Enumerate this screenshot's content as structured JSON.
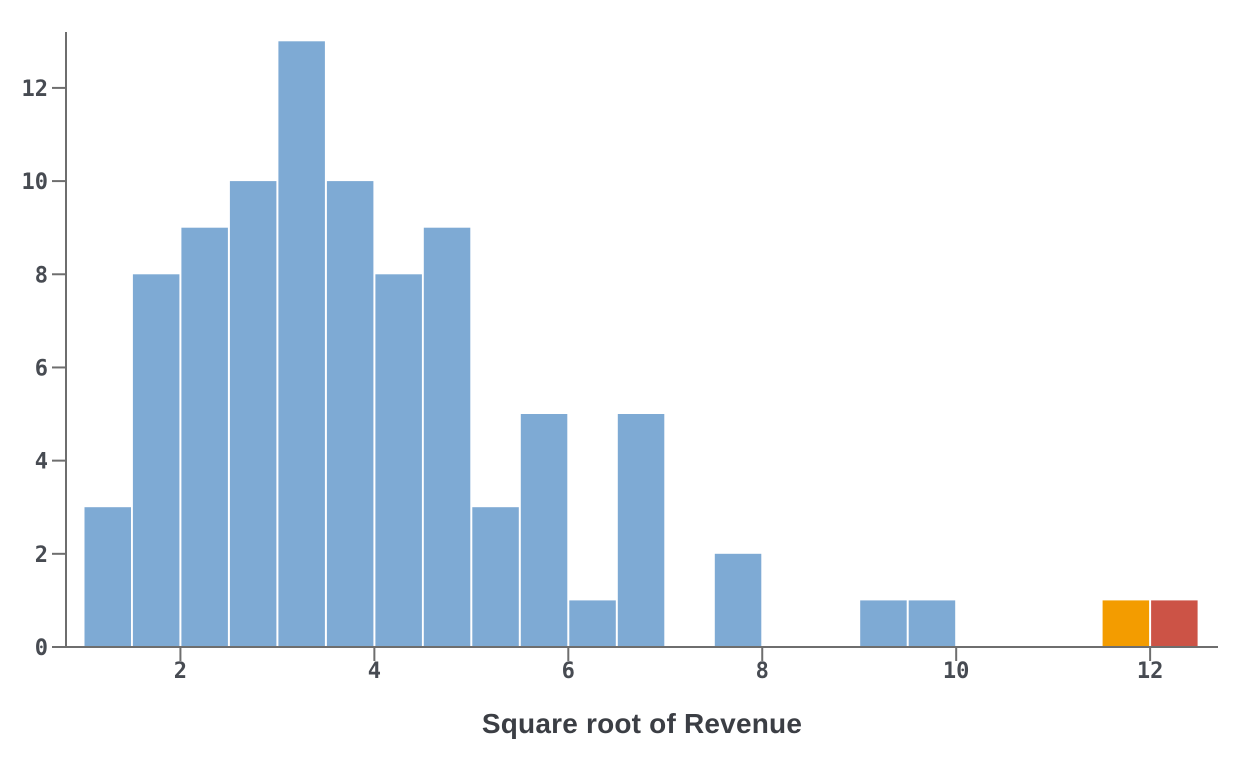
{
  "chart_data": {
    "type": "bar",
    "subtype": "histogram",
    "title": "",
    "xlabel": "Square root of Revenue",
    "ylabel": "",
    "xlim": [
      0.82,
      12.7
    ],
    "ylim": [
      0,
      13.2
    ],
    "xticks": [
      2,
      4,
      6,
      8,
      10,
      12
    ],
    "yticks": [
      0,
      2,
      4,
      6,
      8,
      10,
      12
    ],
    "grid": false,
    "legend": false,
    "bin_width": 0.5,
    "total_count": 90,
    "bins": [
      {
        "x0": 1.0,
        "x1": 1.5,
        "count": 3,
        "color": "blue"
      },
      {
        "x0": 1.5,
        "x1": 2.0,
        "count": 8,
        "color": "blue"
      },
      {
        "x0": 2.0,
        "x1": 2.5,
        "count": 9,
        "color": "blue"
      },
      {
        "x0": 2.5,
        "x1": 3.0,
        "count": 10,
        "color": "blue"
      },
      {
        "x0": 3.0,
        "x1": 3.5,
        "count": 13,
        "color": "blue"
      },
      {
        "x0": 3.5,
        "x1": 4.0,
        "count": 10,
        "color": "blue"
      },
      {
        "x0": 4.0,
        "x1": 4.5,
        "count": 8,
        "color": "blue"
      },
      {
        "x0": 4.5,
        "x1": 5.0,
        "count": 9,
        "color": "blue"
      },
      {
        "x0": 5.0,
        "x1": 5.5,
        "count": 3,
        "color": "blue"
      },
      {
        "x0": 5.5,
        "x1": 6.0,
        "count": 5,
        "color": "blue"
      },
      {
        "x0": 6.0,
        "x1": 6.5,
        "count": 1,
        "color": "blue"
      },
      {
        "x0": 6.5,
        "x1": 7.0,
        "count": 5,
        "color": "blue"
      },
      {
        "x0": 7.0,
        "x1": 7.5,
        "count": 0,
        "color": "blue"
      },
      {
        "x0": 7.5,
        "x1": 8.0,
        "count": 2,
        "color": "blue"
      },
      {
        "x0": 8.0,
        "x1": 8.5,
        "count": 0,
        "color": "blue"
      },
      {
        "x0": 8.5,
        "x1": 9.0,
        "count": 0,
        "color": "blue"
      },
      {
        "x0": 9.0,
        "x1": 9.5,
        "count": 1,
        "color": "blue"
      },
      {
        "x0": 9.5,
        "x1": 10.0,
        "count": 1,
        "color": "blue"
      },
      {
        "x0": 10.0,
        "x1": 10.5,
        "count": 0,
        "color": "blue"
      },
      {
        "x0": 10.5,
        "x1": 11.0,
        "count": 0,
        "color": "blue"
      },
      {
        "x0": 11.0,
        "x1": 11.5,
        "count": 0,
        "color": "blue"
      },
      {
        "x0": 11.5,
        "x1": 12.0,
        "count": 1,
        "color": "orange"
      },
      {
        "x0": 12.0,
        "x1": 12.5,
        "count": 1,
        "color": "red"
      }
    ],
    "palette": {
      "blue": "#7EAAD4",
      "orange": "#F39C00",
      "red": "#CC5346"
    },
    "axis_color": "#6E6E6E",
    "tick_label_color": "#474B52",
    "title_color": "#3B3E44"
  }
}
